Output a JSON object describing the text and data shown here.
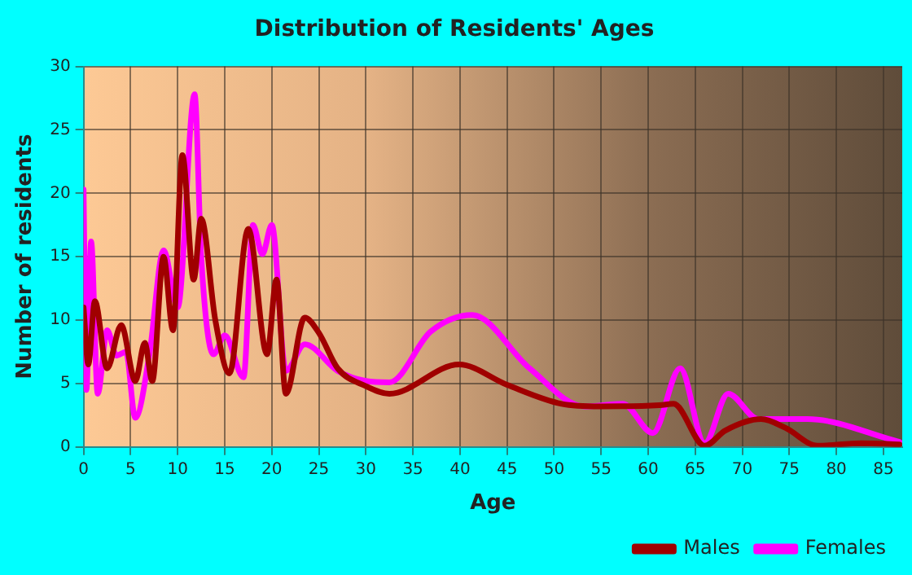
{
  "chart_data": {
    "type": "line",
    "title": "Distribution of Residents' Ages",
    "xlabel": "Age",
    "ylabel": "Number of residents",
    "xlim": [
      0,
      87
    ],
    "xticks": [
      0,
      5,
      10,
      15,
      20,
      25,
      30,
      35,
      40,
      45,
      50,
      55,
      60,
      65,
      70,
      75,
      80,
      85
    ],
    "ylim": [
      0,
      30
    ],
    "yticks": [
      0,
      5,
      10,
      15,
      20,
      25,
      30
    ],
    "grid": true,
    "legend": "bottom",
    "marker": "none",
    "line_style": "solid",
    "series": [
      {
        "name": "Males",
        "color": "#a00000",
        "x": [
          0,
          0.5,
          1.2,
          2.5,
          4,
          5.5,
          6.5,
          7.3,
          8.5,
          9.5,
          10.5,
          11.7,
          12.5,
          14,
          15.5,
          17.5,
          19.5,
          20.5,
          21.5,
          23.5,
          25,
          27,
          30,
          32.5,
          39.9,
          45,
          50.8,
          54.9,
          61.2,
          62.7,
          66,
          68.2,
          72,
          74.6,
          78,
          82.6,
          86.7
        ],
        "values": [
          11,
          6.5,
          11.5,
          6.2,
          9.6,
          5.2,
          8.2,
          5.2,
          15,
          9.2,
          23,
          13.2,
          18,
          10,
          5.8,
          17.2,
          7.3,
          13.2,
          4.2,
          10.2,
          9,
          6.2,
          4.8,
          4.2,
          6.5,
          4.9,
          3.4,
          3.2,
          3.3,
          3.4,
          0.1,
          1.3,
          2.2,
          1.5,
          0.1,
          0.3,
          0.2
        ]
      },
      {
        "name": "Females",
        "color": "#ff00ff",
        "x": [
          0,
          0.3,
          0.8,
          1.5,
          2.5,
          3.5,
          4.5,
          5.5,
          7,
          8.5,
          10,
          11.8,
          12.5,
          13.8,
          15,
          17,
          18,
          19,
          20,
          21.5,
          23.5,
          27,
          30,
          32.5,
          36.9,
          41.3,
          47.4,
          53.2,
          57.3,
          60.5,
          63.4,
          66,
          68.5,
          71.7,
          76.9,
          86.7
        ],
        "values": [
          20.3,
          4.5,
          16.2,
          4.2,
          9.2,
          7.2,
          7.5,
          2.3,
          7.3,
          15.5,
          11,
          27.8,
          15,
          7.3,
          8.8,
          5.5,
          17.5,
          15.2,
          17.5,
          6,
          8.1,
          6,
          5.2,
          5.1,
          9.1,
          10.4,
          6.2,
          3.2,
          3.4,
          1.1,
          6.2,
          0.3,
          4.2,
          2.2,
          2.2,
          0.4
        ]
      }
    ]
  }
}
